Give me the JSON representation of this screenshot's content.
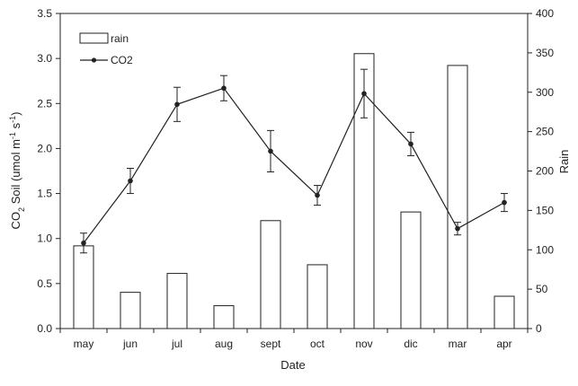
{
  "chart_data": {
    "type": "bar+line",
    "title": "",
    "xlabel": "Date",
    "ylabel_left": "CO₂ Soil (umol m⁻¹ s⁻¹)",
    "ylabel_left_parts": {
      "a": "CO",
      "sub": "2",
      "b": " Soil (umol m",
      "sup1": "-1",
      "c": " s",
      "sup2": "-1",
      "d": ")"
    },
    "ylabel_right": "Rain",
    "categories": [
      "may",
      "jun",
      "jul",
      "aug",
      "sept",
      "oct",
      "nov",
      "dic",
      "mar",
      "apr"
    ],
    "ylim_left": [
      0,
      3.5
    ],
    "yticks_left": [
      "0.0",
      "0.5",
      "1.0",
      "1.5",
      "2.0",
      "2.5",
      "3.0",
      "3.5"
    ],
    "ylim_right": [
      0,
      400
    ],
    "yticks_right": [
      "0",
      "50",
      "100",
      "150",
      "200",
      "250",
      "300",
      "350",
      "400"
    ],
    "series": [
      {
        "name": "rain",
        "type": "bar",
        "axis": "right",
        "values": [
          105,
          46,
          70,
          29,
          137,
          81,
          349,
          148,
          334,
          41
        ]
      },
      {
        "name": "CO2",
        "type": "line",
        "axis": "left",
        "values": [
          0.95,
          1.64,
          2.49,
          2.67,
          1.97,
          1.48,
          2.61,
          2.05,
          1.11,
          1.4
        ],
        "error": [
          0.11,
          0.14,
          0.19,
          0.14,
          0.23,
          0.11,
          0.27,
          0.13,
          0.07,
          0.1
        ]
      }
    ],
    "legend_position": "top-left",
    "grid": false,
    "colors": {
      "bar_fill": "#ffffff",
      "bar_stroke": "#222222",
      "line": "#222222",
      "axis": "#222222"
    }
  }
}
